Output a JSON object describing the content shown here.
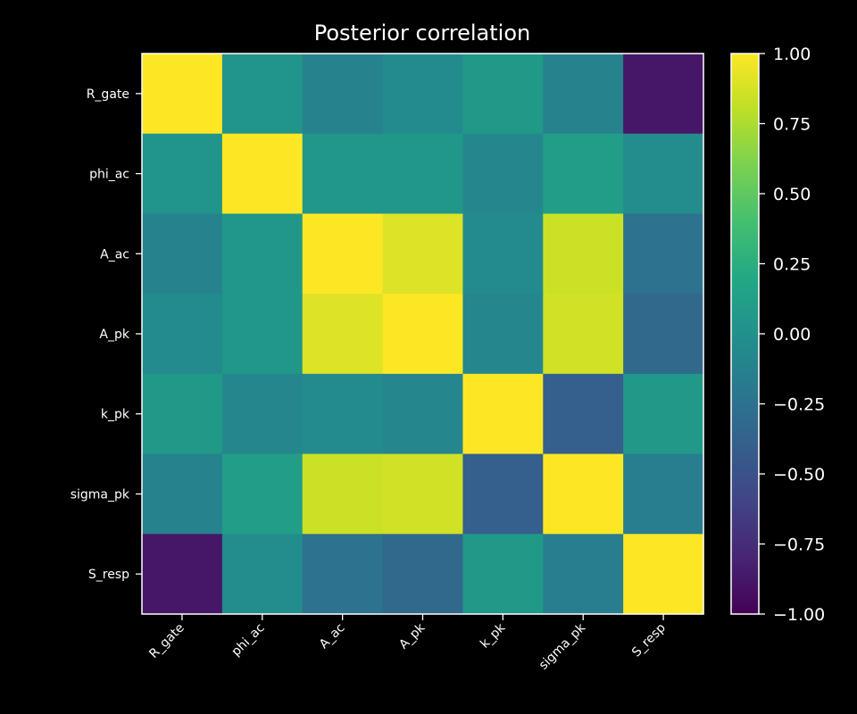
{
  "chart_data": {
    "type": "heatmap",
    "title": "Posterior correlation",
    "xlabel": "",
    "ylabel": "",
    "labels": [
      "R_gate",
      "phi_ac",
      "A_ac",
      "A_pk",
      "k_pk",
      "sigma_pk",
      "S_resp"
    ],
    "matrix": [
      [
        1.0,
        0.03,
        -0.12,
        -0.05,
        0.07,
        -0.12,
        -0.88
      ],
      [
        0.03,
        1.0,
        0.05,
        0.05,
        -0.08,
        0.1,
        -0.03
      ],
      [
        -0.12,
        0.05,
        1.0,
        0.9,
        -0.05,
        0.84,
        -0.25
      ],
      [
        -0.05,
        0.05,
        0.9,
        1.0,
        -0.08,
        0.86,
        -0.32
      ],
      [
        0.07,
        -0.08,
        -0.05,
        -0.08,
        1.0,
        -0.4,
        0.07
      ],
      [
        -0.12,
        0.1,
        0.84,
        0.86,
        -0.4,
        1.0,
        -0.15
      ],
      [
        -0.88,
        -0.03,
        -0.25,
        -0.32,
        0.07,
        -0.15,
        1.0
      ]
    ],
    "colorbar": {
      "colormap": "viridis",
      "vmin": -1.0,
      "vmax": 1.0,
      "ticks": [
        "1.00",
        "0.75",
        "0.50",
        "0.25",
        "0.00",
        "−0.25",
        "−0.50",
        "−0.75",
        "−1.00"
      ],
      "tick_values": [
        1.0,
        0.75,
        0.5,
        0.25,
        0.0,
        -0.25,
        -0.5,
        -0.75,
        -1.0
      ]
    },
    "colors": {
      "background": "#000000",
      "text": "#ffffff",
      "frame": "#ffffff"
    }
  }
}
